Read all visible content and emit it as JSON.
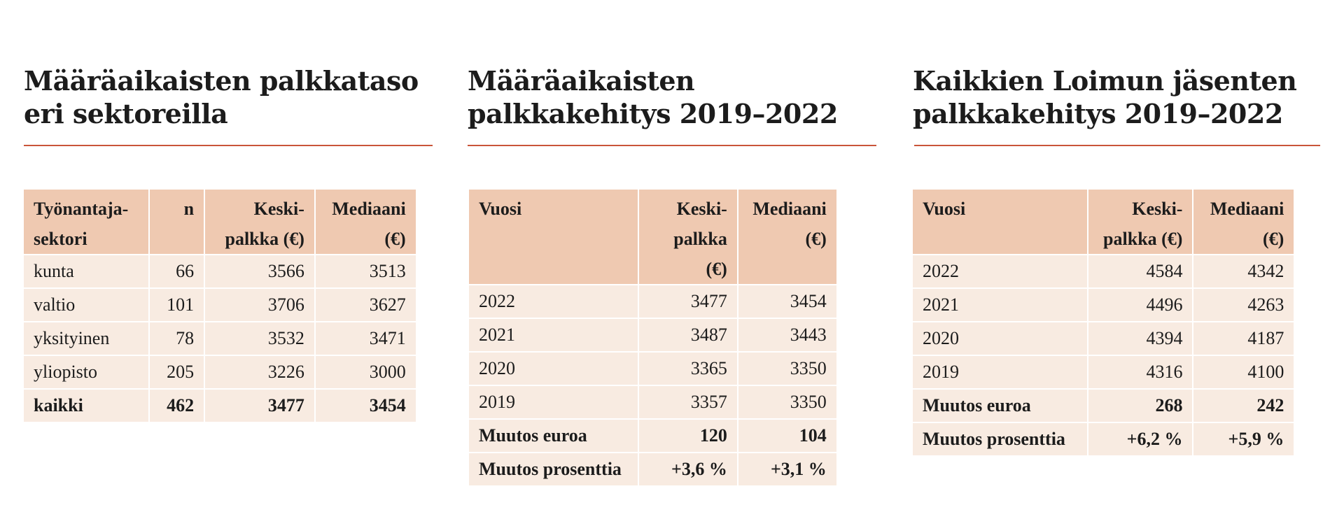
{
  "panel1": {
    "title_line1": "Määräaikaisten palkkataso",
    "title_line2": "eri sektoreilla",
    "headers": {
      "col1_line1": "Työnantaja-",
      "col1_line2": "sektori",
      "col2": "n",
      "col3_line1": "Keski-",
      "col3_line2": "palkka (€)",
      "col4_line1": "Mediaani",
      "col4_line2": "(€)"
    },
    "rows": [
      {
        "label": "kunta",
        "n": "66",
        "avg": "3566",
        "median": "3513"
      },
      {
        "label": "valtio",
        "n": "101",
        "avg": "3706",
        "median": "3627"
      },
      {
        "label": "yksityinen",
        "n": "78",
        "avg": "3532",
        "median": "3471"
      },
      {
        "label": "yliopisto",
        "n": "205",
        "avg": "3226",
        "median": "3000"
      },
      {
        "label": "kaikki",
        "n": "462",
        "avg": "3477",
        "median": "3454"
      }
    ]
  },
  "panel2": {
    "title_line1": "Määräaikaisten",
    "title_line2": "palkkakehitys 2019–2022",
    "headers": {
      "col1": "Vuosi",
      "col2_line1": "Keski-",
      "col2_line2": "palkka (€)",
      "col3_line1": "Mediaani",
      "col3_line2": "(€)"
    },
    "rows": [
      {
        "label": "2022",
        "avg": "3477",
        "median": "3454"
      },
      {
        "label": "2021",
        "avg": "3487",
        "median": "3443"
      },
      {
        "label": "2020",
        "avg": "3365",
        "median": "3350"
      },
      {
        "label": "2019",
        "avg": "3357",
        "median": "3350"
      },
      {
        "label": "Muutos euroa",
        "avg": "120",
        "median": "104"
      },
      {
        "label": "Muutos prosenttia",
        "avg": "+3,6 %",
        "median": "+3,1 %"
      }
    ]
  },
  "panel3": {
    "title_line1": "Kaikkien Loimun jäsenten",
    "title_line2": "palkkakehitys 2019–2022",
    "headers": {
      "col1": "Vuosi",
      "col2_line1": "Keski-",
      "col2_line2": "palkka (€)",
      "col3_line1": "Mediaani",
      "col3_line2": "(€)"
    },
    "rows": [
      {
        "label": "2022",
        "avg": "4584",
        "median": "4342"
      },
      {
        "label": "2021",
        "avg": "4496",
        "median": "4263"
      },
      {
        "label": "2020",
        "avg": "4394",
        "median": "4187"
      },
      {
        "label": "2019",
        "avg": "4316",
        "median": "4100"
      },
      {
        "label": "Muutos euroa",
        "avg": "268",
        "median": "242"
      },
      {
        "label": "Muutos prosenttia",
        "avg": "+6,2 %",
        "median": "+5,9 %"
      }
    ]
  },
  "colors": {
    "accent_rule": "#c9553a",
    "header_fill": "#efc9b1",
    "cell_fill": "#f8ebe1"
  }
}
